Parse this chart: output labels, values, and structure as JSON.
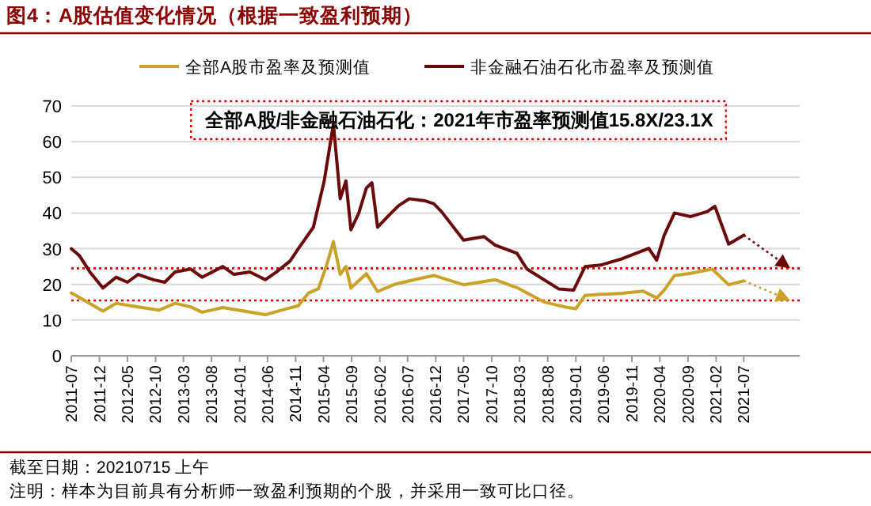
{
  "chart_data": {
    "type": "line",
    "title": "图4：A股估值变化情况（根据一致盈利预期）",
    "annotations": [
      "全部A股/非金融石油石化：2021年市盈率预测值15.8X/23.1X",
      "截至日期：20210715 上午",
      "注明：样本为目前具有分析师一致盈利预期的个股，并采用一致可比口径。"
    ],
    "xlim": [
      "2011-07-01",
      "2022-05-01"
    ],
    "xticks": [
      "2011-07",
      "2011-12",
      "2012-05",
      "2012-10",
      "2013-03",
      "2013-08",
      "2014-01",
      "2014-06",
      "2014-11",
      "2015-04",
      "2015-09",
      "2016-02",
      "2016-07",
      "2016-12",
      "2017-05",
      "2017-10",
      "2018-03",
      "2018-08",
      "2019-01",
      "2019-06",
      "2019-11",
      "2020-04",
      "2020-09",
      "2021-02",
      "2021-07"
    ],
    "ylim": [
      0,
      70
    ],
    "yticks": [
      0,
      10,
      20,
      30,
      40,
      50,
      60,
      70
    ],
    "grid": "y",
    "legend": "top",
    "marker": "none",
    "series": [
      {
        "name": "全部A股市盈率及预测值",
        "color": "#c9a227",
        "line_style": "solid",
        "x": [
          "2011-07-01",
          "2011-09-15",
          "2011-12-20",
          "2012-03-01",
          "2012-06-28",
          "2012-10-20",
          "2013-01-15",
          "2013-04-10",
          "2013-06-10",
          "2013-10-01",
          "2014-01-25",
          "2014-05-20",
          "2014-09-15",
          "2014-11-15",
          "2015-01-10",
          "2015-03-05",
          "2015-04-20",
          "2015-05-25",
          "2015-07-01",
          "2015-08-01",
          "2015-08-28",
          "2015-11-20",
          "2016-01-20",
          "2016-04-20",
          "2016-08-20",
          "2016-11-20",
          "2017-05-01",
          "2017-10-20",
          "2018-02-15",
          "2018-07-10",
          "2018-11-01",
          "2019-01-01",
          "2019-02-20",
          "2019-05-15",
          "2019-09-10",
          "2020-01-01",
          "2020-03-15",
          "2020-04-25",
          "2020-06-20",
          "2020-09-15",
          "2021-01-10",
          "2021-04-10",
          "2021-07-01"
        ],
        "values": [
          17.6,
          15.4,
          12.5,
          14.7,
          13.7,
          12.8,
          14.7,
          13.7,
          12.2,
          13.5,
          12.5,
          11.5,
          13.2,
          14,
          17.6,
          18.8,
          25.7,
          32,
          22.8,
          25,
          19,
          23,
          18,
          20,
          21.5,
          22.5,
          19.9,
          21.3,
          19.1,
          15.1,
          13.7,
          13.2,
          16.9,
          17.2,
          17.5,
          18.1,
          16.2,
          18.4,
          22.5,
          23.1,
          24.3,
          19.9,
          21
        ]
      },
      {
        "name": "非金融石油石化市盈率及预测值",
        "color": "#6b0a0a",
        "line_style": "solid",
        "x": [
          "2011-07-01",
          "2011-08-15",
          "2011-10-10",
          "2011-12-20",
          "2012-03-01",
          "2012-05-01",
          "2012-06-28",
          "2012-09-20",
          "2012-11-20",
          "2013-01-15",
          "2013-04-10",
          "2013-06-10",
          "2013-10-01",
          "2013-12-01",
          "2014-02-25",
          "2014-05-20",
          "2014-07-20",
          "2014-10-01",
          "2014-11-15",
          "2015-02-05",
          "2015-04-05",
          "2015-05-25",
          "2015-07-01",
          "2015-08-01",
          "2015-08-28",
          "2015-10-10",
          "2015-11-20",
          "2015-12-20",
          "2016-01-20",
          "2016-03-15",
          "2016-05-12",
          "2016-07-10",
          "2016-10-05",
          "2016-11-20",
          "2017-01-01",
          "2017-05-01",
          "2017-08-20",
          "2017-10-20",
          "2018-02-15",
          "2018-04-10",
          "2018-10-01",
          "2018-12-20",
          "2019-02-20",
          "2019-05-15",
          "2019-09-10",
          "2020-02-01",
          "2020-03-15",
          "2020-04-25",
          "2020-06-20",
          "2020-09-15",
          "2020-12-15",
          "2021-01-25",
          "2021-04-10",
          "2021-07-01"
        ],
        "values": [
          30,
          28,
          23.5,
          19,
          22,
          20.6,
          22.8,
          21.3,
          20.6,
          23.5,
          24.3,
          22,
          25,
          22.8,
          23.5,
          21.3,
          23.5,
          26.5,
          30,
          36,
          49,
          65,
          44,
          49,
          35.3,
          40,
          47,
          48.5,
          36,
          39,
          42,
          44,
          43.4,
          42.6,
          40.4,
          32.4,
          33.4,
          31,
          28.7,
          24.3,
          18.7,
          18.4,
          25,
          25.4,
          27.2,
          30.1,
          26.8,
          33.8,
          40,
          39,
          40.4,
          41.9,
          31.3,
          33.8
        ]
      }
    ],
    "ref_lines": [
      {
        "axis": "y",
        "value": 15.5,
        "color": "#e00000",
        "line_style": "dotted"
      },
      {
        "axis": "y",
        "value": 24.5,
        "color": "#e00000",
        "line_style": "dotted"
      }
    ]
  }
}
